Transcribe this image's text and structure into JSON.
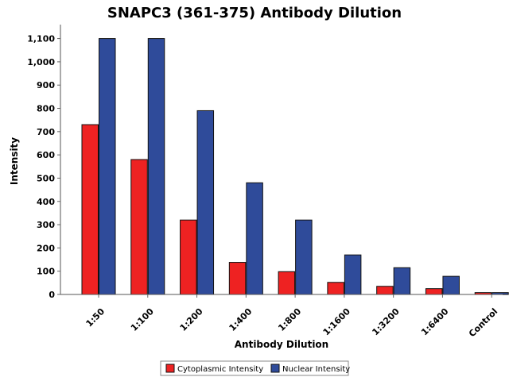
{
  "chart_data": {
    "type": "bar",
    "title": "SNAPC3 (361-375) Antibody Dilution",
    "xlabel": "Antibody Dilution",
    "ylabel": "Intensity",
    "categories": [
      "1:50",
      "1:100",
      "1:200",
      "1:400",
      "1:800",
      "1:1600",
      "1:3200",
      "1:6400",
      "Control"
    ],
    "series": [
      {
        "name": "Cytoplasmic Intensity",
        "color": "#ee2222",
        "values": [
          730,
          580,
          320,
          138,
          98,
          52,
          35,
          25,
          8
        ]
      },
      {
        "name": "Nuclear Intensity",
        "color": "#2f4b9a",
        "values": [
          1100,
          1100,
          790,
          480,
          320,
          170,
          115,
          78,
          8
        ]
      }
    ],
    "ylim": [
      0,
      1160
    ],
    "yticks": [
      "0",
      "100",
      "200",
      "300",
      "400",
      "500",
      "600",
      "700",
      "800",
      "900",
      "1,000",
      "1,100"
    ],
    "grid": false,
    "legend_position": "bottom-center"
  }
}
